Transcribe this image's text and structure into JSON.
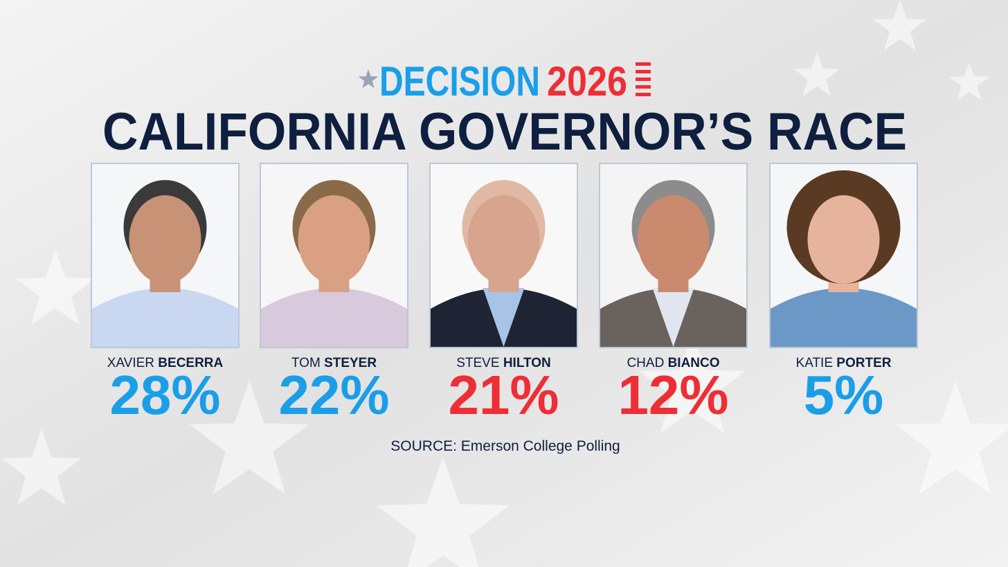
{
  "header": {
    "logo_word": "DECISION",
    "logo_year": "2026",
    "title": "CALIFORNIA GOVERNOR’S RACE"
  },
  "candidates": [
    {
      "first": "XAVIER",
      "last": "BECERRA",
      "percent": "28%",
      "color": "#1a9ee8"
    },
    {
      "first": "TOM",
      "last": "STEYER",
      "percent": "22%",
      "color": "#1a9ee8"
    },
    {
      "first": "STEVE",
      "last": "HILTON",
      "percent": "21%",
      "color": "#ee2e36"
    },
    {
      "first": "CHAD",
      "last": "BIANCO",
      "percent": "12%",
      "color": "#ee2e36"
    },
    {
      "first": "KATIE",
      "last": "PORTER",
      "percent": "5%",
      "color": "#1a9ee8"
    }
  ],
  "source": "SOURCE: Emerson College Polling"
}
